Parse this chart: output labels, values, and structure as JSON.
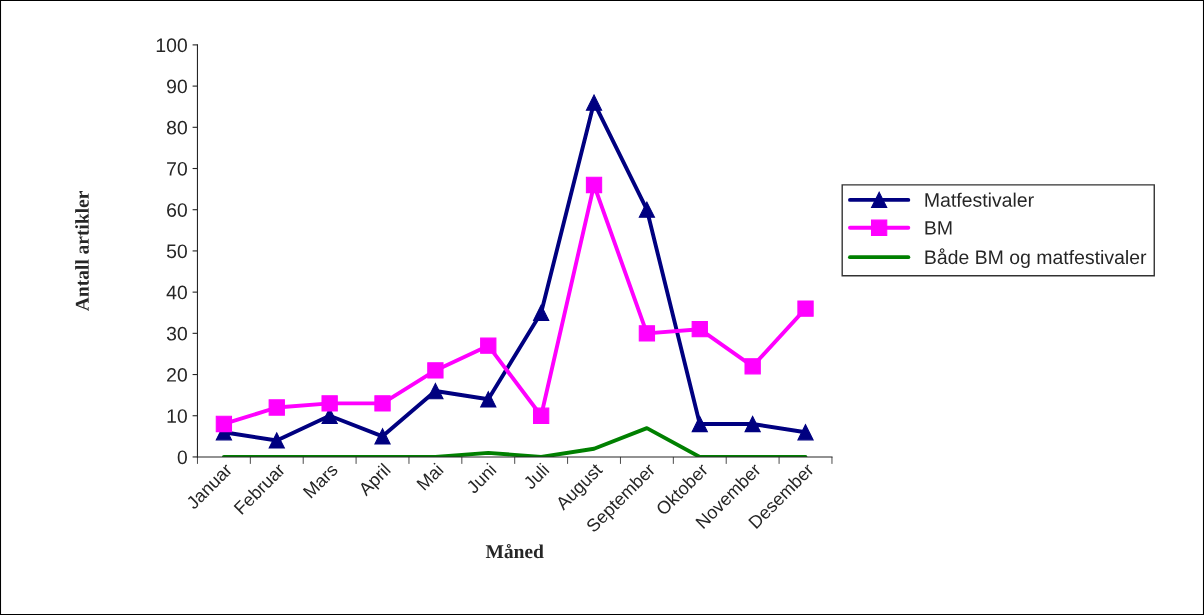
{
  "chart_data": {
    "type": "line",
    "xlabel": "Måned",
    "ylabel": "Antall artikler",
    "categories": [
      "Januar",
      "Februar",
      "Mars",
      "April",
      "Mai",
      "Juni",
      "Juli",
      "August",
      "September",
      "Oktober",
      "November",
      "Desember"
    ],
    "series": [
      {
        "name": "Matfestivaler",
        "color": "#000080",
        "marker": "triangle",
        "values": [
          6,
          4,
          10,
          5,
          16,
          14,
          35,
          86,
          60,
          8,
          8,
          6
        ]
      },
      {
        "name": "BM",
        "color": "#ff00ff",
        "marker": "square",
        "values": [
          8,
          12,
          13,
          13,
          21,
          27,
          10,
          66,
          30,
          31,
          22,
          36
        ]
      },
      {
        "name": "Både BM og matfestivaler",
        "color": "#008000",
        "marker": "none",
        "values": [
          0,
          0,
          0,
          0,
          0,
          1,
          0,
          2,
          7,
          0,
          0,
          0
        ]
      }
    ],
    "ylim": [
      0,
      100
    ],
    "yticks": [
      0,
      10,
      20,
      30,
      40,
      50,
      60,
      70,
      80,
      90,
      100
    ],
    "grid": false,
    "legend": "right",
    "line_style": "solid"
  }
}
